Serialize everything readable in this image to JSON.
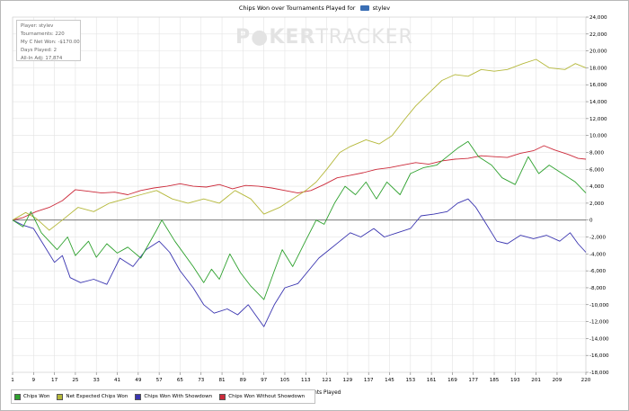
{
  "title": {
    "prefix": "Chips Won over Tournaments Played for",
    "player": "stylev"
  },
  "info_box": {
    "line1": "Player: stylev",
    "line2": "Tournaments: 220",
    "line3": "My C Net Won: -$170.00",
    "line4": "Days Played: 2",
    "line5": "All-In Adj: 17,874"
  },
  "watermark": {
    "part1": "P",
    "part2": "KER",
    "part3": "TRACKER"
  },
  "colors": {
    "chips_won": "#2ea12e",
    "net_expected": "#b5b83a",
    "with_showdown": "#3a35b0",
    "without_showdown": "#cc2a3a",
    "zero_line": "#666666",
    "grid": "#e3e3e3"
  },
  "chart_data": {
    "type": "line",
    "title": "Chips Won over Tournaments Played for stylev",
    "xlabel": "Tournaments Played",
    "ylabel": "",
    "xlim": [
      1,
      220
    ],
    "ylim": [
      -18000,
      24000
    ],
    "x_ticks": [
      1,
      9,
      17,
      25,
      33,
      41,
      49,
      57,
      65,
      73,
      81,
      89,
      97,
      105,
      113,
      121,
      129,
      137,
      145,
      153,
      161,
      169,
      177,
      185,
      193,
      201,
      209,
      220
    ],
    "y_ticks": [
      -18000,
      -16000,
      -14000,
      -12000,
      -10000,
      -8000,
      -6000,
      -4000,
      -2000,
      0,
      2000,
      4000,
      6000,
      8000,
      10000,
      12000,
      14000,
      16000,
      18000,
      20000,
      22000,
      24000
    ],
    "x_tick_labels": [
      "1",
      "9",
      "17",
      "25",
      "33",
      "41",
      "49",
      "57",
      "65",
      "73",
      "81",
      "89",
      "97",
      "105",
      "113",
      "121",
      "129",
      "137",
      "145",
      "153",
      "161",
      "169",
      "177",
      "185",
      "193",
      "201",
      "209",
      "220"
    ],
    "y_tick_labels": [
      "-18,000",
      "-16,000",
      "-14,000",
      "-12,000",
      "-10,000",
      "-8,000",
      "-6,000",
      "-4,000",
      "-2,000",
      "0",
      "2,000",
      "4,000",
      "6,000",
      "8,000",
      "10,000",
      "12,000",
      "14,000",
      "16,000",
      "18,000",
      "20,000",
      "22,000",
      "24,000"
    ],
    "grid": true,
    "legend_position": "bottom-left",
    "series": [
      {
        "name": "Chips Won",
        "points": [
          [
            1,
            0
          ],
          [
            5,
            -800
          ],
          [
            8,
            1000
          ],
          [
            12,
            -1500
          ],
          [
            18,
            -3500
          ],
          [
            22,
            -2000
          ],
          [
            25,
            -4200
          ],
          [
            30,
            -2500
          ],
          [
            33,
            -4400
          ],
          [
            37,
            -2800
          ],
          [
            41,
            -3900
          ],
          [
            45,
            -3200
          ],
          [
            50,
            -4500
          ],
          [
            56,
            -1200
          ],
          [
            58,
            0
          ],
          [
            63,
            -2500
          ],
          [
            70,
            -5500
          ],
          [
            74,
            -7400
          ],
          [
            77,
            -5800
          ],
          [
            80,
            -7000
          ],
          [
            84,
            -4000
          ],
          [
            88,
            -6200
          ],
          [
            92,
            -7800
          ],
          [
            97,
            -9400
          ],
          [
            101,
            -6000
          ],
          [
            104,
            -3500
          ],
          [
            108,
            -5500
          ],
          [
            113,
            -2400
          ],
          [
            117,
            0
          ],
          [
            120,
            -500
          ],
          [
            124,
            2000
          ],
          [
            128,
            4000
          ],
          [
            132,
            3000
          ],
          [
            136,
            4500
          ],
          [
            140,
            2500
          ],
          [
            144,
            4500
          ],
          [
            149,
            3000
          ],
          [
            153,
            5500
          ],
          [
            158,
            6200
          ],
          [
            163,
            6500
          ],
          [
            167,
            7500
          ],
          [
            171,
            8500
          ],
          [
            175,
            9300
          ],
          [
            179,
            7500
          ],
          [
            184,
            6500
          ],
          [
            188,
            5000
          ],
          [
            193,
            4200
          ],
          [
            198,
            7500
          ],
          [
            202,
            5500
          ],
          [
            206,
            6500
          ],
          [
            211,
            5500
          ],
          [
            216,
            4500
          ],
          [
            220,
            3200
          ]
        ]
      },
      {
        "name": "Net Expected Chips Won",
        "points": [
          [
            1,
            0
          ],
          [
            6,
            900
          ],
          [
            10,
            200
          ],
          [
            15,
            -1200
          ],
          [
            20,
            0
          ],
          [
            26,
            1500
          ],
          [
            32,
            1000
          ],
          [
            38,
            2000
          ],
          [
            44,
            2500
          ],
          [
            50,
            3000
          ],
          [
            56,
            3500
          ],
          [
            62,
            2500
          ],
          [
            68,
            2000
          ],
          [
            74,
            2500
          ],
          [
            80,
            2000
          ],
          [
            86,
            3500
          ],
          [
            92,
            2500
          ],
          [
            97,
            700
          ],
          [
            103,
            1500
          ],
          [
            108,
            2500
          ],
          [
            113,
            3500
          ],
          [
            117,
            4500
          ],
          [
            121,
            6000
          ],
          [
            126,
            8000
          ],
          [
            130,
            8700
          ],
          [
            136,
            9500
          ],
          [
            141,
            9000
          ],
          [
            146,
            10000
          ],
          [
            151,
            12000
          ],
          [
            155,
            13500
          ],
          [
            160,
            15000
          ],
          [
            165,
            16500
          ],
          [
            170,
            17200
          ],
          [
            175,
            17000
          ],
          [
            180,
            17800
          ],
          [
            185,
            17600
          ],
          [
            190,
            17800
          ],
          [
            196,
            18500
          ],
          [
            201,
            19000
          ],
          [
            206,
            18000
          ],
          [
            212,
            17800
          ],
          [
            216,
            18500
          ],
          [
            220,
            18000
          ]
        ]
      },
      {
        "name": "Chips Won With Showdown",
        "points": [
          [
            1,
            0
          ],
          [
            5,
            -600
          ],
          [
            9,
            -1000
          ],
          [
            13,
            -3000
          ],
          [
            17,
            -5000
          ],
          [
            20,
            -4200
          ],
          [
            23,
            -6800
          ],
          [
            27,
            -7400
          ],
          [
            32,
            -7000
          ],
          [
            37,
            -7600
          ],
          [
            42,
            -4500
          ],
          [
            47,
            -5500
          ],
          [
            52,
            -3500
          ],
          [
            57,
            -2500
          ],
          [
            61,
            -3800
          ],
          [
            65,
            -6000
          ],
          [
            70,
            -8000
          ],
          [
            74,
            -10000
          ],
          [
            78,
            -11000
          ],
          [
            83,
            -10500
          ],
          [
            87,
            -11200
          ],
          [
            91,
            -10000
          ],
          [
            97,
            -12600
          ],
          [
            101,
            -10000
          ],
          [
            105,
            -8000
          ],
          [
            110,
            -7500
          ],
          [
            114,
            -6000
          ],
          [
            118,
            -4500
          ],
          [
            122,
            -3500
          ],
          [
            126,
            -2500
          ],
          [
            130,
            -1500
          ],
          [
            134,
            -2000
          ],
          [
            139,
            -1000
          ],
          [
            143,
            -2000
          ],
          [
            148,
            -1500
          ],
          [
            153,
            -1000
          ],
          [
            157,
            500
          ],
          [
            162,
            700
          ],
          [
            167,
            1000
          ],
          [
            171,
            2000
          ],
          [
            175,
            2500
          ],
          [
            178,
            1500
          ],
          [
            182,
            -500
          ],
          [
            186,
            -2500
          ],
          [
            190,
            -2800
          ],
          [
            195,
            -1800
          ],
          [
            200,
            -2200
          ],
          [
            205,
            -1800
          ],
          [
            210,
            -2500
          ],
          [
            214,
            -1500
          ],
          [
            217,
            -2800
          ],
          [
            220,
            -3800
          ]
        ]
      },
      {
        "name": "Chips Won Without Showdown",
        "points": [
          [
            1,
            0
          ],
          [
            5,
            300
          ],
          [
            10,
            1000
          ],
          [
            15,
            1500
          ],
          [
            20,
            2300
          ],
          [
            25,
            3600
          ],
          [
            30,
            3400
          ],
          [
            35,
            3200
          ],
          [
            40,
            3300
          ],
          [
            45,
            3000
          ],
          [
            50,
            3500
          ],
          [
            55,
            3800
          ],
          [
            60,
            4000
          ],
          [
            65,
            4300
          ],
          [
            70,
            4000
          ],
          [
            75,
            3900
          ],
          [
            80,
            4200
          ],
          [
            85,
            3700
          ],
          [
            90,
            4100
          ],
          [
            95,
            4000
          ],
          [
            100,
            3800
          ],
          [
            105,
            3500
          ],
          [
            110,
            3200
          ],
          [
            115,
            3500
          ],
          [
            120,
            4200
          ],
          [
            125,
            5000
          ],
          [
            130,
            5300
          ],
          [
            135,
            5600
          ],
          [
            140,
            6000
          ],
          [
            145,
            6200
          ],
          [
            150,
            6500
          ],
          [
            155,
            6800
          ],
          [
            160,
            6600
          ],
          [
            165,
            7000
          ],
          [
            170,
            7200
          ],
          [
            175,
            7300
          ],
          [
            180,
            7600
          ],
          [
            185,
            7500
          ],
          [
            190,
            7400
          ],
          [
            195,
            7900
          ],
          [
            200,
            8200
          ],
          [
            204,
            8800
          ],
          [
            208,
            8300
          ],
          [
            213,
            7800
          ],
          [
            217,
            7300
          ],
          [
            220,
            7200
          ]
        ]
      }
    ]
  },
  "legend": {
    "item1": "Chips Won",
    "item2": "Net Expected Chips Won",
    "item3": "Chips Won With Showdown",
    "item4": "Chips Won Without Showdown"
  }
}
